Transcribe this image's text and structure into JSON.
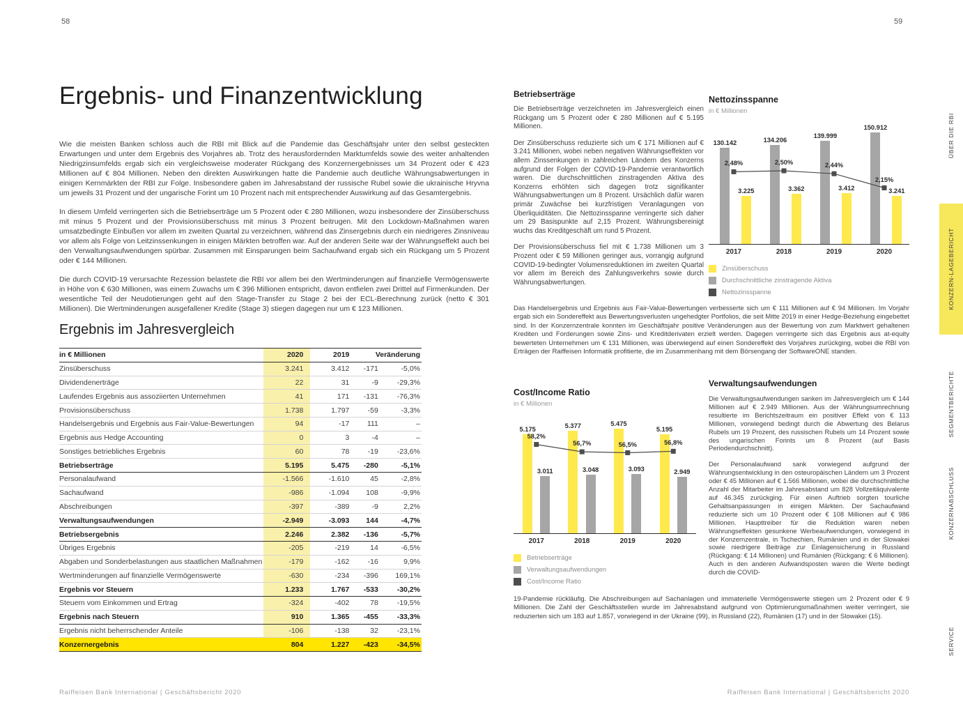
{
  "document": {
    "left_page": {
      "page_number": "58",
      "title": "Ergebnis- und Finanzentwicklung",
      "paragraphs": [
        "Wie die meisten Banken schloss auch die RBI mit Blick auf die Pandemie das Geschäftsjahr unter den selbst gesteckten Erwartungen und unter dem Ergebnis des Vorjahres ab. Trotz des herausfordernden Marktumfelds sowie des weiter anhaltenden Niedrigzinsumfelds ergab sich ein vergleichsweise moderater Rückgang des Konzernergebnisses um 34 Prozent oder € 423 Millionen auf € 804 Millionen. Neben den direkten Auswirkungen hatte die Pandemie auch deutliche Währungsabwertungen in einigen Kernmärkten der RBI zur Folge. Insbesondere gaben im Jahresabstand der russische Rubel sowie die ukrainische Hryvna um jeweils 31 Prozent und der ungarische Forint um 10 Prozent nach mit entsprechender Auswirkung auf das Gesamtergebnis.",
        "In diesem Umfeld verringerten sich die Betriebserträge um 5 Prozent oder € 280 Millionen, wozu insbesondere der Zinsüberschuss mit minus 5 Prozent und der Provisionsüberschuss mit minus 3 Prozent beitrugen. Mit den Lockdown-Maßnahmen waren umsatzbedingte Einbußen vor allem im zweiten Quartal zu verzeichnen, während das Zinsergebnis durch ein niedrigeres Zinsniveau vor allem als Folge von Leitzinssenkungen in einigen Märkten betroffen war. Auf der anderen Seite war der Währungseffekt auch bei den Verwaltungsaufwendungen spürbar. Zusammen mit Einsparungen beim Sachaufwand ergab sich ein Rückgang um 5 Prozent oder € 144 Millionen.",
        "Die durch COVID-19 verursachte Rezession belastete die RBI vor allem bei den Wertminderungen auf finanzielle Vermögenswerte in Höhe von € 630 Millionen, was einem Zuwachs um € 396 Millionen entspricht, davon entfielen zwei Drittel auf Firmenkunden. Der wesentliche Teil der Neudotierungen geht auf den Stage-Transfer zu Stage 2 bei der ECL-Berechnung zurück (netto € 301 Millionen). Die Wertminderungen ausgefallener Kredite (Stage 3) stiegen dagegen nur um € 123 Millionen."
      ],
      "table": {
        "title": "Ergebnis im Jahresvergleich",
        "unit_label": "in € Millionen",
        "columns": [
          "2020",
          "2019",
          "Veränderung"
        ],
        "rows": [
          {
            "label": "Zinsüberschuss",
            "y2020": "3.241",
            "y2019": "3.412",
            "chg": "-171",
            "pct": "-5,0%",
            "style": "normal"
          },
          {
            "label": "Dividendenerträge",
            "y2020": "22",
            "y2019": "31",
            "chg": "-9",
            "pct": "-29,3%",
            "style": "normal"
          },
          {
            "label": "Laufendes Ergebnis aus assoziierten Unternehmen",
            "y2020": "41",
            "y2019": "171",
            "chg": "-131",
            "pct": "-76,3%",
            "style": "normal"
          },
          {
            "label": "Provisionsüberschuss",
            "y2020": "1.738",
            "y2019": "1.797",
            "chg": "-59",
            "pct": "-3,3%",
            "style": "normal"
          },
          {
            "label": "Handelsergebnis und Ergebnis aus Fair-Value-Bewertungen",
            "y2020": "94",
            "y2019": "-17",
            "chg": "111",
            "pct": "–",
            "style": "normal"
          },
          {
            "label": "Ergebnis aus Hedge Accounting",
            "y2020": "0",
            "y2019": "3",
            "chg": "-4",
            "pct": "–",
            "style": "normal"
          },
          {
            "label": "Sonstiges betriebliches Ergebnis",
            "y2020": "60",
            "y2019": "78",
            "chg": "-19",
            "pct": "-23,6%",
            "style": "normal"
          },
          {
            "label": "Betriebserträge",
            "y2020": "5.195",
            "y2019": "5.475",
            "chg": "-280",
            "pct": "-5,1%",
            "style": "subtotal"
          },
          {
            "label": "Personalaufwand",
            "y2020": "-1.566",
            "y2019": "-1.610",
            "chg": "45",
            "pct": "-2,8%",
            "style": "normal"
          },
          {
            "label": "Sachaufwand",
            "y2020": "-986",
            "y2019": "-1.094",
            "chg": "108",
            "pct": "-9,9%",
            "style": "normal"
          },
          {
            "label": "Abschreibungen",
            "y2020": "-397",
            "y2019": "-389",
            "chg": "-9",
            "pct": "2,2%",
            "style": "normal"
          },
          {
            "label": "Verwaltungsaufwendungen",
            "y2020": "-2.949",
            "y2019": "-3.093",
            "chg": "144",
            "pct": "-4,7%",
            "style": "subtotal"
          },
          {
            "label": "Betriebsergebnis",
            "y2020": "2.246",
            "y2019": "2.382",
            "chg": "-136",
            "pct": "-5,7%",
            "style": "subtotal"
          },
          {
            "label": "Übriges Ergebnis",
            "y2020": "-205",
            "y2019": "-219",
            "chg": "14",
            "pct": "-6,5%",
            "style": "normal"
          },
          {
            "label": "Abgaben und Sonderbelastungen aus staatlichen Maßnahmen",
            "y2020": "-179",
            "y2019": "-162",
            "chg": "-16",
            "pct": "9,9%",
            "style": "normal"
          },
          {
            "label": "Wertminderungen auf finanzielle Vermögenswerte",
            "y2020": "-630",
            "y2019": "-234",
            "chg": "-396",
            "pct": "169,1%",
            "style": "normal"
          },
          {
            "label": "Ergebnis vor Steuern",
            "y2020": "1.233",
            "y2019": "1.767",
            "chg": "-533",
            "pct": "-30,2%",
            "style": "subtotal"
          },
          {
            "label": "Steuern vom Einkommen und Ertrag",
            "y2020": "-324",
            "y2019": "-402",
            "chg": "78",
            "pct": "-19,5%",
            "style": "normal"
          },
          {
            "label": "Ergebnis nach Steuern",
            "y2020": "910",
            "y2019": "1.365",
            "chg": "-455",
            "pct": "-33,3%",
            "style": "subtotal"
          },
          {
            "label": "Ergebnis nicht beherrschender Anteile",
            "y2020": "-106",
            "y2019": "-138",
            "chg": "32",
            "pct": "-23,1%",
            "style": "normal"
          },
          {
            "label": "Konzernergebnis",
            "y2020": "804",
            "y2019": "1.227",
            "chg": "-423",
            "pct": "-34,5%",
            "style": "total"
          }
        ]
      },
      "footer": "Raiffeisen Bank International | Geschäftsbericht 2020"
    },
    "right_page": {
      "page_number": "59",
      "betriebsertraege": {
        "heading": "Betriebserträge",
        "paragraphs": [
          "Die Betriebserträge verzeichneten im Jahresvergleich einen Rückgang um 5 Prozent oder € 280 Millionen auf € 5.195 Millionen.",
          "Der Zinsüberschuss reduzierte sich um € 171 Millionen auf € 3.241 Millionen, wobei neben negativen Währungseffekten vor allem Zinssenkungen in zahlreichen Ländern des Konzerns aufgrund der Folgen der COVID-19-Pandemie verantwortlich waren. Die durchschnittlichen zinstragenden Aktiva des Konzerns erhöhten sich dagegen trotz signifikanter Währungsabwertungen um 8 Prozent. Ursächlich dafür waren primär Zuwächse bei kurzfristigen Veranlagungen von Überliquiditäten. Die Nettozinsspanne verringerte sich daher um 29 Basispunkte auf 2,15 Prozent. Währungsbereinigt wuchs das Kreditgeschäft um rund 5 Prozent.",
          "Der Provisionsüberschuss fiel mit € 1.738 Millionen um 3 Prozent oder € 59 Millionen geringer aus, vorrangig aufgrund COVID-19-bedingter Volumensreduktionen im zweiten Quartal vor allem im Bereich des Zahlungsverkehrs sowie durch Währungsabwertungen."
        ]
      },
      "handelsergebnis_paragraph": "Das Handelsergebnis und Ergebnis aus Fair-Value-Bewertungen verbesserte sich um € 111 Millionen auf € 94 Millionen. Im Vorjahr ergab sich ein Sondereffekt aus Bewertungsverlusten ungehedgter Portfolios, die seit Mitte 2019 in einer Hedge-Beziehung eingebettet sind. In der Konzernzentrale konnten im Geschäftsjahr positive Veränderungen aus der Bewertung von zum Marktwert gehaltenen Krediten und Forderungen sowie Zins- und Kreditderivaten erzielt werden. Dagegen verringerte sich das Ergebnis aus at-equity bewerteten Unternehmen um € 131 Millionen, was überwiegend auf einen Sondereffekt des Vorjahres zurückging, wobei die RBI von Erträgen der Raiffeisen Informatik profitierte, die im Zusammenhang mit dem Börsengang der SoftwareONE standen.",
      "verwaltungsaufwendungen": {
        "heading": "Verwaltungsaufwendungen",
        "paragraphs": [
          "Die Verwaltungsaufwendungen sanken im Jahresvergleich um € 144 Millionen auf € 2.949 Millionen. Aus der Währungsumrechnung resultierte im Berichtszeitraum ein positiver Effekt von € 113 Millionen, vorwiegend bedingt durch die Abwertung des Belarus Rubels um 19 Prozent, des russischen Rubels um 14 Prozent sowie des ungarischen Forints um 8 Prozent (auf Basis Periodendurchschnitt).",
          "Der Personalaufwand sank vorwiegend aufgrund der Währungsentwicklung in den osteuropäischen Ländern um 3 Prozent oder € 45 Millionen auf € 1.566 Millionen, wobei die durchschnittliche Anzahl der Mitarbeiter im Jahresabstand um 828 Vollzeitäquivalente auf 46.345 zurückging. Für einen Auftrieb sorgten tourliche Gehaltsanpassungen in einigen Märkten. Der Sachaufwand reduzierte sich um 10 Prozent oder € 108 Millionen auf € 986 Millionen. Haupttreiber für die Reduktion waren neben Währungseffekten gesunkene Werbeaufwendungen, vorwiegend in der Konzernzentrale, in Tschechien, Rumänien und in der Slowakei sowie niedrigere Beiträge zur Einlagensicherung in Russland (Rückgang: € 14 Millionen) und Rumänien (Rückgang: € 6 Millionen). Auch in den anderen Aufwandsposten waren die Werte bedingt durch die COVID-"
        ]
      },
      "bottom_paragraph": "19-Pandemie rückläufig. Die Abschreibungen auf Sachanlagen und immaterielle Vermögenswerte stiegen um 2 Prozent oder € 9 Millionen. Die Zahl der Geschäftsstellen wurde im Jahresabstand aufgrund von Optimierungsmaßnahmen weiter verringert, sie reduzierten sich um 183 auf 1.857, vorwiegend in der Ukraine (99), in Russland (22), Rumänien (17) und in der Slowakei (15).",
      "footer": "Raiffeisen Bank International | Geschäftsbericht 2020"
    },
    "sidebar_tabs": [
      {
        "label": "ÜBER DIE RBI",
        "active": false
      },
      {
        "label": "KONZERN-LAGEBERICHT",
        "active": true
      },
      {
        "label": "SEGMENTBERICHTE",
        "active": false
      },
      {
        "label": "KONZERNABSCHLUSS",
        "active": false
      },
      {
        "label": "SERVICE",
        "active": false
      }
    ]
  },
  "colors": {
    "brand_yellow": "#ffe500",
    "pale_yellow_column": "#f9f0ac",
    "bar_yellow": "#ffe94d",
    "bar_gray": "#a6a6a6",
    "marker_dark": "#4d4d4d",
    "tab_yellow": "#f6e75b"
  },
  "chart_data": [
    {
      "type": "bar+line",
      "title": "Nettozinsspanne",
      "unit": "in € Millionen",
      "categories": [
        "2017",
        "2018",
        "2019",
        "2020"
      ],
      "series": [
        {
          "name": "Zinsüberschuss",
          "role": "bar",
          "color_key": "yellow",
          "values": [
            3225,
            3362,
            3412,
            3241
          ],
          "labels": [
            "3.225",
            "3.362",
            "3.412",
            "3.241"
          ]
        },
        {
          "name": "Durchschnittliche zinstragende Aktiva",
          "role": "bar",
          "color_key": "gray",
          "values": [
            130142,
            134206,
            139999,
            150912
          ],
          "labels": [
            "130.142",
            "134.206",
            "139.999",
            "150.912"
          ]
        },
        {
          "name": "Nettozinsspanne",
          "role": "line",
          "color_key": "dark",
          "values": [
            2.48,
            2.5,
            2.44,
            2.15
          ],
          "labels": [
            "2,48%",
            "2,50%",
            "2,44%",
            "2,15%"
          ]
        }
      ],
      "legend": [
        "Zinsüberschuss",
        "Durchschnittliche zinstragende Aktiva",
        "Nettozinsspanne"
      ],
      "legend_position": "bottom",
      "grid": false
    },
    {
      "type": "bar+line",
      "title": "Cost/Income Ratio",
      "unit": "in € Millionen",
      "categories": [
        "2017",
        "2018",
        "2019",
        "2020"
      ],
      "series": [
        {
          "name": "Betriebserträge",
          "role": "bar",
          "color_key": "yellow",
          "values": [
            5175,
            5377,
            5475,
            5195
          ],
          "labels": [
            "5.175",
            "5.377",
            "5.475",
            "5.195"
          ]
        },
        {
          "name": "Verwaltungsaufwendungen",
          "role": "bar",
          "color_key": "gray",
          "values": [
            3011,
            3048,
            3093,
            2949
          ],
          "labels": [
            "3.011",
            "3.048",
            "3.093",
            "2.949"
          ]
        },
        {
          "name": "Cost/Income Ratio",
          "role": "line",
          "color_key": "dark",
          "values": [
            58.2,
            56.7,
            56.5,
            56.8
          ],
          "labels": [
            "58,2%",
            "56,7%",
            "56,5%",
            "56,8%"
          ]
        }
      ],
      "legend": [
        "Betriebserträge",
        "Verwaltungsaufwendungen",
        "Cost/Income Ratio"
      ],
      "legend_position": "bottom",
      "grid": false
    }
  ]
}
